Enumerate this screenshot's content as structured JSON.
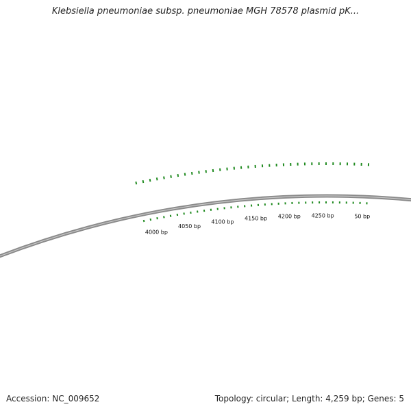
{
  "title": "Klebsiella pneumoniae subsp. pneumoniae MGH 78578 plasmid pK...",
  "footer": {
    "accession_label": "Accession:",
    "accession": "NC_009652",
    "topology_label": "Topology:",
    "topology": "circular",
    "length_label": "Length:",
    "length": "4,259 bp",
    "genes_label": "Genes:",
    "genes": "5"
  },
  "scale_labels": [
    {
      "bp": 4000,
      "text": "4000 bp"
    },
    {
      "bp": 4050,
      "text": "4050 bp"
    },
    {
      "bp": 4100,
      "text": "4100 bp"
    },
    {
      "bp": 4150,
      "text": "4150 bp"
    },
    {
      "bp": 4200,
      "text": "4200 bp"
    },
    {
      "bp": 4250,
      "text": "4250 bp"
    },
    {
      "bp": 50,
      "text": "50 bp"
    }
  ],
  "colors": {
    "backbone": "#8a8a8a",
    "backbone_highlight": "#c8c8c8",
    "feature": "#1f8a1f",
    "text": "#222222"
  }
}
